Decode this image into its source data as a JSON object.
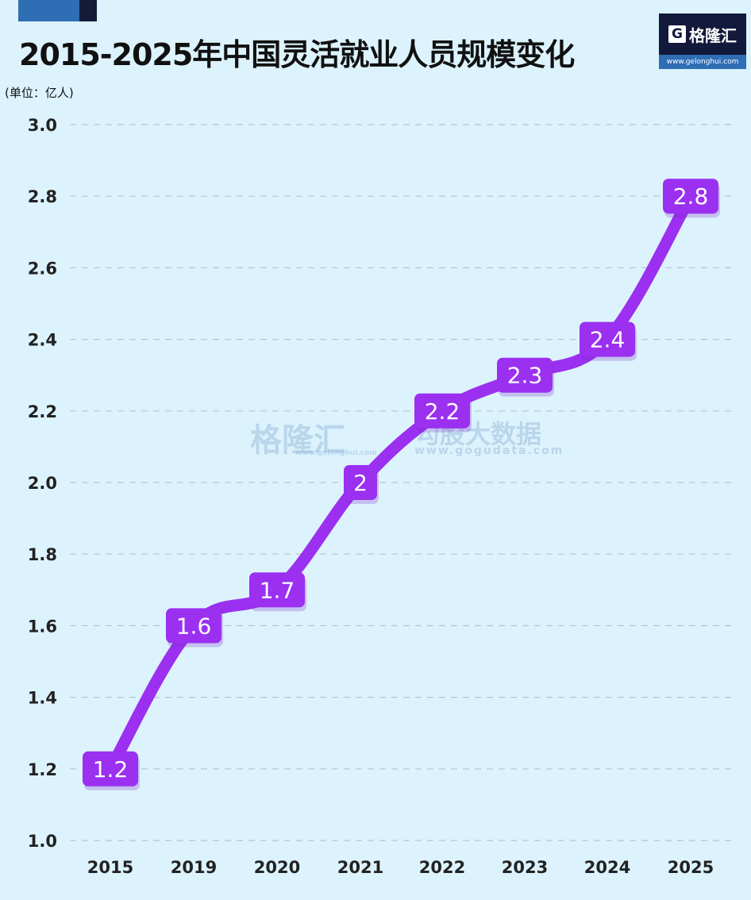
{
  "header": {
    "title": "2015-2025年中国灵活就业人员规模变化",
    "unit": "(单位：亿人)"
  },
  "logo": {
    "glyph": "G",
    "name": "格隆汇",
    "url": "www.gelonghui.com"
  },
  "watermark": {
    "left_name": "格隆汇",
    "left_url": "www.gelonghui.com",
    "right_name": "勾股大数据",
    "right_url": "www.gogudata.com"
  },
  "colors": {
    "background": "#dcf3fd",
    "line": "#9b30f0",
    "label_bg": "#9b30f0",
    "grid": "#b8c4cc"
  },
  "chart_data": {
    "type": "line",
    "title": "2015-2025年中国灵活就业人员规模变化",
    "xlabel": "",
    "ylabel": "单位：亿人",
    "categories": [
      "2015",
      "2019",
      "2020",
      "2021",
      "2022",
      "2023",
      "2024",
      "2025"
    ],
    "values": [
      1.2,
      1.6,
      1.7,
      2,
      2.2,
      2.3,
      2.4,
      2.8
    ],
    "value_labels": [
      "1.2",
      "1.6",
      "1.7",
      "2",
      "2.2",
      "2.3",
      "2.4",
      "2.8"
    ],
    "ylim": [
      1.0,
      3.0
    ],
    "yticks": [
      "3.0",
      "2.8",
      "2.6",
      "2.4",
      "2.2",
      "2.0",
      "1.8",
      "1.6",
      "1.4",
      "1.2",
      "1.0"
    ],
    "grid": true,
    "legend": "none"
  }
}
